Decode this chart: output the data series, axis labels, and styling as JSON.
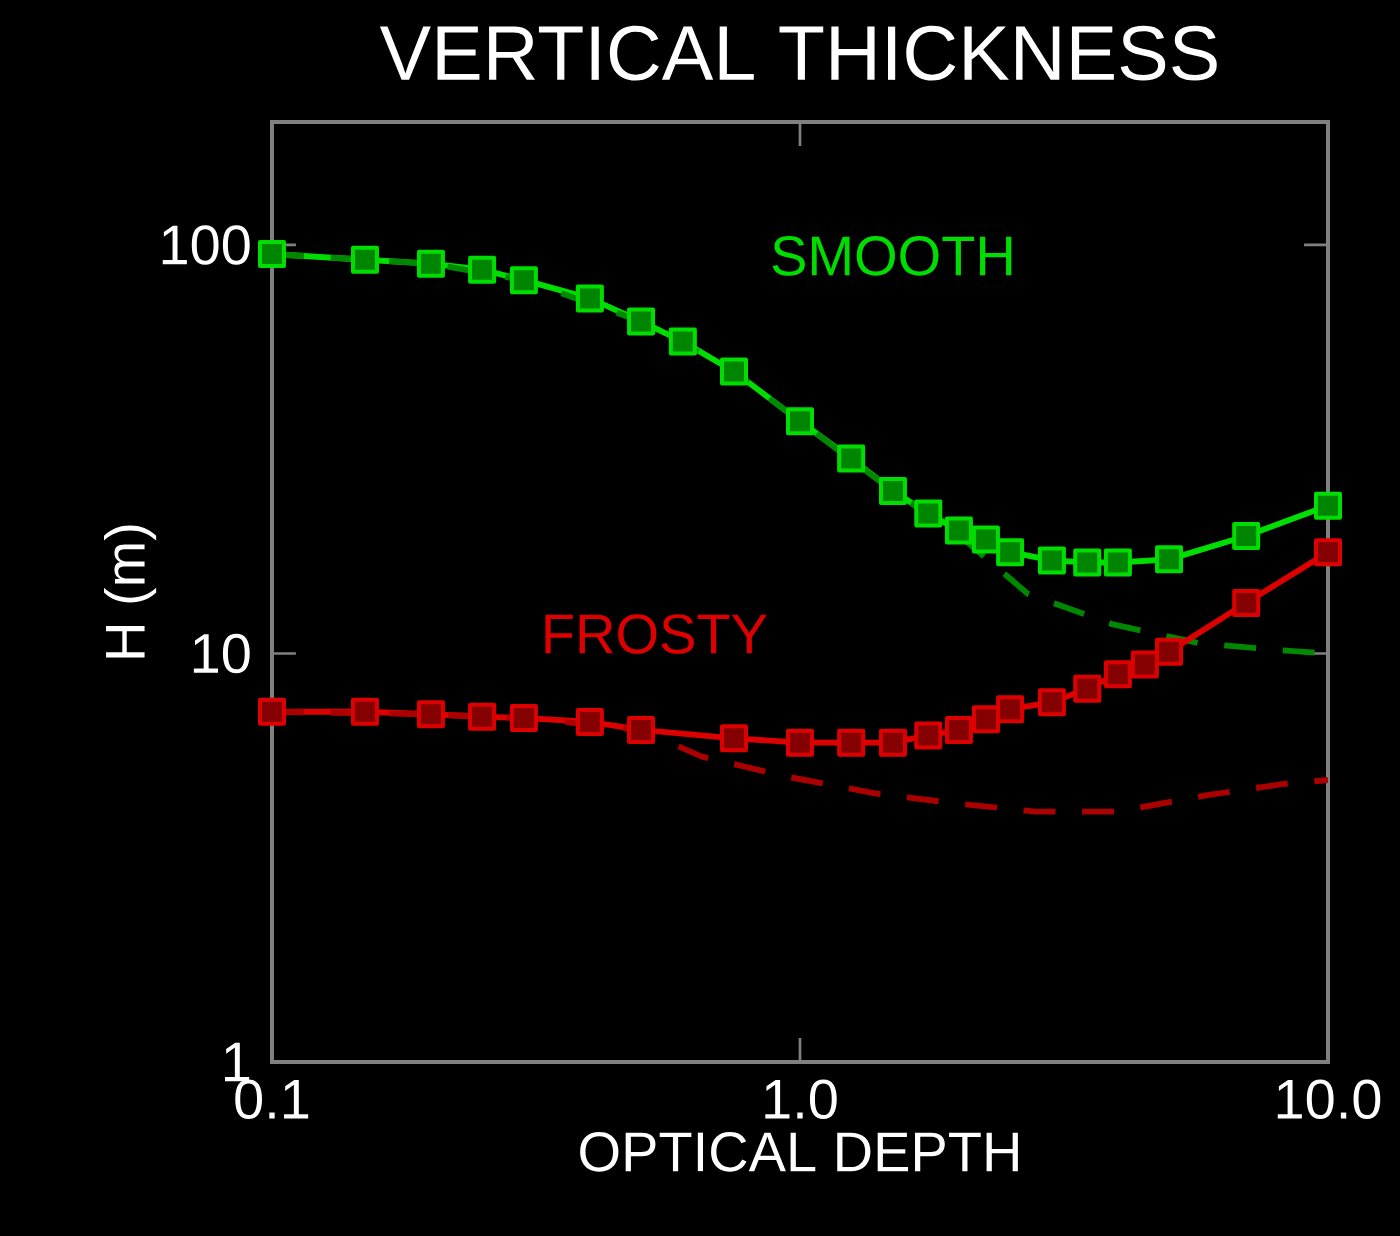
{
  "chart_data": {
    "type": "line",
    "title": "VERTICAL THICKNESS",
    "xlabel": "OPTICAL DEPTH",
    "ylabel": "H (m)",
    "log": "xy",
    "grid": false,
    "legend": false,
    "xlim": [
      0.1,
      10
    ],
    "ylim": [
      1,
      200
    ],
    "xticks": [
      {
        "value": 0.1,
        "label": "0.1"
      },
      {
        "value": 1,
        "label": "1.0"
      },
      {
        "value": 10,
        "label": "10.0"
      }
    ],
    "yticks": [
      1,
      10,
      100
    ],
    "series": [
      {
        "name": "SMOOTH",
        "color": "#00dd00",
        "marker": "square",
        "line_style": "solid",
        "x": [
          0.1,
          0.15,
          0.2,
          0.25,
          0.3,
          0.4,
          0.5,
          0.6,
          0.75,
          1.0,
          1.25,
          1.5,
          1.75,
          2.0,
          2.25,
          2.5,
          3,
          3.5,
          4,
          5,
          7,
          10
        ],
        "values": [
          95,
          92,
          90,
          87,
          82,
          74,
          65,
          58,
          49,
          37,
          30,
          25,
          22,
          20,
          19,
          17.7,
          16.9,
          16.7,
          16.7,
          17,
          19.4,
          23
        ]
      },
      {
        "color": "#008800",
        "marker": "none",
        "line_style": "dashed",
        "x": [
          0.1,
          0.2,
          0.3,
          0.5,
          0.75,
          1.0,
          1.5,
          2.0,
          2.7,
          3.9,
          5.7,
          8,
          10
        ],
        "values": [
          95,
          90,
          82,
          65,
          49,
          37,
          25,
          19.5,
          14,
          11.8,
          10.6,
          10.2,
          10
        ]
      },
      {
        "name": "FROSTY",
        "color": "#dd0000",
        "marker": "square",
        "line_style": "solid",
        "x": [
          0.1,
          0.15,
          0.2,
          0.25,
          0.3,
          0.4,
          0.5,
          0.75,
          1.0,
          1.25,
          1.5,
          1.75,
          2.0,
          2.25,
          2.5,
          3,
          3.5,
          4,
          4.5,
          5,
          7,
          10
        ],
        "values": [
          7.2,
          7.2,
          7.1,
          7.0,
          6.95,
          6.8,
          6.5,
          6.2,
          6.05,
          6.05,
          6.05,
          6.3,
          6.5,
          6.9,
          7.3,
          7.6,
          8.2,
          8.9,
          9.4,
          10.1,
          13.3,
          17.7
        ]
      },
      {
        "color": "#aa0000",
        "marker": "none",
        "line_style": "dashed",
        "x": [
          0.1,
          0.2,
          0.3,
          0.5,
          0.65,
          0.94,
          1.38,
          1.96,
          2.8,
          4.0,
          5.9,
          8.3,
          10
        ],
        "values": [
          7.2,
          7.1,
          6.95,
          6.5,
          5.6,
          5.0,
          4.55,
          4.3,
          4.1,
          4.1,
          4.5,
          4.8,
          4.9
        ]
      }
    ]
  }
}
